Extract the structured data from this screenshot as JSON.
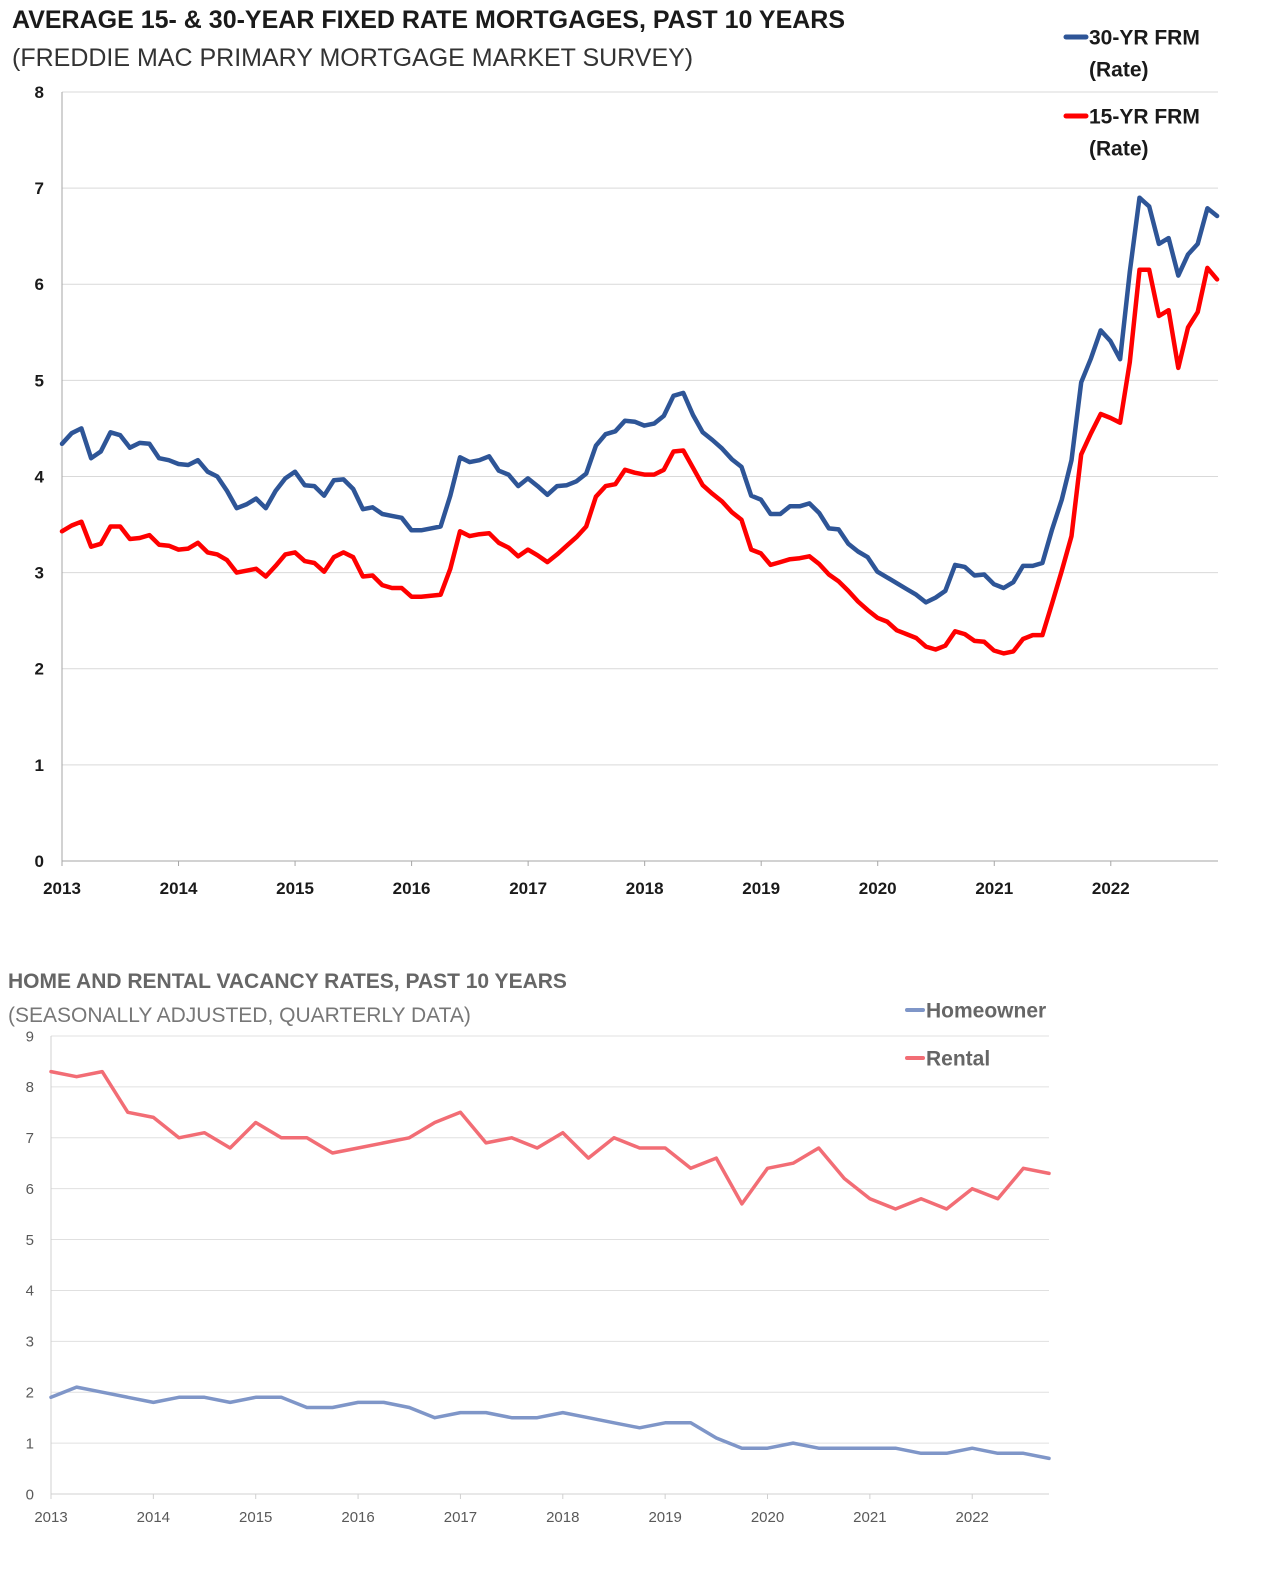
{
  "charts": [
    {
      "title": "AVERAGE 15- & 30-YEAR FIXED RATE MORTGAGES, PAST 10 YEARS",
      "subtitle": "(FREDDIE MAC PRIMARY MORTGAGE MARKET SURVEY)",
      "y_ticks": [
        "0",
        "1",
        "2",
        "3",
        "4",
        "5",
        "6",
        "7",
        "8"
      ],
      "x_ticks": [
        "2013",
        "2014",
        "2015",
        "2016",
        "2017",
        "2018",
        "2019",
        "2020",
        "2021",
        "2022"
      ],
      "legend": [
        {
          "name_line1": "30-YR FRM",
          "name_line2": "(Rate)",
          "color": "#2e5597"
        },
        {
          "name_line1": "15-YR FRM",
          "name_line2": "(Rate)",
          "color": "#ff0000"
        }
      ]
    },
    {
      "title": "HOME AND RENTAL VACANCY RATES, PAST 10 YEARS",
      "subtitle": "(SEASONALLY ADJUSTED, QUARTERLY DATA)",
      "y_ticks": [
        "0",
        "1",
        "2",
        "3",
        "4",
        "5",
        "6",
        "7",
        "8",
        "9"
      ],
      "x_ticks": [
        "2013",
        "2014",
        "2015",
        "2016",
        "2017",
        "2018",
        "2019",
        "2020",
        "2021",
        "2022"
      ],
      "legend": [
        {
          "name_line1": "Homeowner",
          "color": "#7f96c8"
        },
        {
          "name_line1": "Rental",
          "color": "#f26d75"
        }
      ]
    }
  ],
  "chart_data": [
    {
      "type": "line",
      "title": "AVERAGE 15- & 30-YEAR FIXED RATE MORTGAGES, PAST 10 YEARS",
      "subtitle": "(FREDDIE MAC PRIMARY MORTGAGE MARKET SURVEY)",
      "xlabel": "",
      "ylabel": "",
      "xlim": [
        2013,
        2022.92
      ],
      "ylim": [
        0,
        8
      ],
      "grid": true,
      "legend_position": "top-right",
      "x_step_years": 0.0833,
      "series": [
        {
          "name": "30-YR FRM (Rate)",
          "color": "#2e5597",
          "values": [
            4.34,
            4.45,
            4.5,
            4.19,
            4.26,
            4.46,
            4.43,
            4.3,
            4.35,
            4.34,
            4.19,
            4.17,
            4.13,
            4.12,
            4.17,
            4.05,
            4.0,
            3.85,
            3.67,
            3.71,
            3.77,
            3.67,
            3.85,
            3.98,
            4.05,
            3.91,
            3.9,
            3.8,
            3.96,
            3.97,
            3.87,
            3.66,
            3.68,
            3.61,
            3.59,
            3.57,
            3.44,
            3.44,
            3.46,
            3.48,
            3.8,
            4.2,
            4.15,
            4.17,
            4.21,
            4.06,
            4.02,
            3.9,
            3.98,
            3.9,
            3.81,
            3.9,
            3.91,
            3.95,
            4.03,
            4.32,
            4.44,
            4.47,
            4.58,
            4.57,
            4.53,
            4.55,
            4.63,
            4.84,
            4.87,
            4.64,
            4.46,
            4.38,
            4.29,
            4.18,
            4.1,
            3.8,
            3.76,
            3.61,
            3.61,
            3.69,
            3.69,
            3.72,
            3.62,
            3.46,
            3.45,
            3.3,
            3.22,
            3.16,
            3.01,
            2.95,
            2.89,
            2.83,
            2.77,
            2.69,
            2.74,
            2.81,
            3.08,
            3.06,
            2.97,
            2.98,
            2.88,
            2.84,
            2.9,
            3.07,
            3.07,
            3.1,
            3.45,
            3.76,
            4.17,
            4.98,
            5.23,
            5.52,
            5.41,
            5.22,
            6.13,
            6.9,
            6.81,
            6.42,
            6.48,
            6.09,
            6.31,
            6.42,
            6.79,
            6.71
          ]
        },
        {
          "name": "15-YR FRM (Rate)",
          "color": "#ff0000",
          "values": [
            3.43,
            3.49,
            3.53,
            3.27,
            3.3,
            3.48,
            3.48,
            3.35,
            3.36,
            3.39,
            3.29,
            3.28,
            3.24,
            3.25,
            3.31,
            3.21,
            3.19,
            3.13,
            3.0,
            3.02,
            3.04,
            2.96,
            3.07,
            3.19,
            3.21,
            3.12,
            3.1,
            3.01,
            3.16,
            3.21,
            3.16,
            2.96,
            2.97,
            2.87,
            2.84,
            2.84,
            2.75,
            2.75,
            2.76,
            2.77,
            3.04,
            3.43,
            3.38,
            3.4,
            3.41,
            3.31,
            3.26,
            3.17,
            3.24,
            3.18,
            3.11,
            3.19,
            3.28,
            3.37,
            3.48,
            3.79,
            3.9,
            3.92,
            4.07,
            4.04,
            4.02,
            4.02,
            4.07,
            4.26,
            4.27,
            4.09,
            3.91,
            3.82,
            3.74,
            3.63,
            3.55,
            3.24,
            3.2,
            3.08,
            3.11,
            3.14,
            3.15,
            3.17,
            3.09,
            2.98,
            2.91,
            2.81,
            2.7,
            2.61,
            2.53,
            2.49,
            2.4,
            2.36,
            2.32,
            2.23,
            2.2,
            2.24,
            2.39,
            2.36,
            2.29,
            2.28,
            2.19,
            2.16,
            2.18,
            2.31,
            2.35,
            2.35,
            2.68,
            3.02,
            3.38,
            4.23,
            4.45,
            4.65,
            4.61,
            4.56,
            5.19,
            6.15,
            6.15,
            5.67,
            5.73,
            5.13,
            5.55,
            5.71,
            6.17,
            6.05
          ]
        }
      ]
    },
    {
      "type": "line",
      "title": "HOME AND RENTAL VACANCY RATES, PAST 10 YEARS",
      "subtitle": "(SEASONALLY ADJUSTED, QUARTERLY DATA)",
      "xlabel": "",
      "ylabel": "",
      "xlim": [
        2013,
        2022.75
      ],
      "ylim": [
        0,
        9
      ],
      "grid": true,
      "legend_position": "top-right",
      "x_step_years": 0.25,
      "series": [
        {
          "name": "Homeowner",
          "color": "#7f96c8",
          "values": [
            1.9,
            2.1,
            2.0,
            1.9,
            1.8,
            1.9,
            1.9,
            1.8,
            1.9,
            1.9,
            1.7,
            1.7,
            1.8,
            1.8,
            1.7,
            1.5,
            1.6,
            1.6,
            1.5,
            1.5,
            1.6,
            1.5,
            1.4,
            1.3,
            1.4,
            1.4,
            1.1,
            0.9,
            0.9,
            1.0,
            0.9,
            0.9,
            0.9,
            0.9,
            0.8,
            0.8,
            0.9,
            0.8,
            0.8,
            0.7
          ]
        },
        {
          "name": "Rental",
          "color": "#f26d75",
          "values": [
            8.3,
            8.2,
            8.3,
            7.5,
            7.4,
            7.0,
            7.1,
            6.8,
            7.3,
            7.0,
            7.0,
            6.7,
            6.8,
            6.9,
            7.0,
            7.3,
            7.5,
            6.9,
            7.0,
            6.8,
            7.1,
            6.6,
            7.0,
            6.8,
            6.8,
            6.4,
            6.6,
            5.7,
            6.4,
            6.5,
            6.8,
            6.2,
            5.8,
            5.6,
            5.8,
            5.6,
            6.0,
            5.8,
            6.4,
            6.3
          ]
        }
      ]
    }
  ]
}
